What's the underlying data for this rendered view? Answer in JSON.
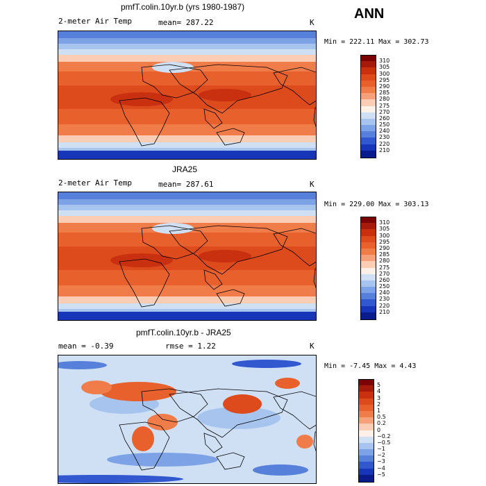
{
  "season": "ANN",
  "panels": [
    {
      "title": "pmfT.colin.10yr.b (yrs 1980-1987)",
      "left_label": "2-meter Air Temp",
      "center_label": "mean= 287.22",
      "unit": "K",
      "min_max": "Min = 222.11 Max = 302.73",
      "colorbar_labels": [
        "310",
        "305",
        "300",
        "295",
        "290",
        "285",
        "280",
        "275",
        "270",
        "260",
        "250",
        "240",
        "230",
        "220",
        "210"
      ],
      "colors": [
        "#7a0403",
        "#a51a0b",
        "#c8300f",
        "#dd4a1c",
        "#e8612d",
        "#f07c4a",
        "#f6a07a",
        "#fbcdb4",
        "#fdf0e6",
        "#cfe0f5",
        "#a6c4ee",
        "#7da3e6",
        "#5780db",
        "#3158cf",
        "#1735b8",
        "#0a1c8c"
      ],
      "surface": "temp"
    },
    {
      "title": "JRA25",
      "left_label": "2-meter Air Temp",
      "center_label": "mean= 287.61",
      "unit": "K",
      "min_max": "Min = 229.00 Max = 303.13",
      "colorbar_labels": [
        "310",
        "305",
        "300",
        "295",
        "290",
        "285",
        "280",
        "275",
        "270",
        "260",
        "250",
        "240",
        "230",
        "220",
        "210"
      ],
      "colors": [
        "#7a0403",
        "#a51a0b",
        "#c8300f",
        "#dd4a1c",
        "#e8612d",
        "#f07c4a",
        "#f6a07a",
        "#fbcdb4",
        "#fdf0e6",
        "#cfe0f5",
        "#a6c4ee",
        "#7da3e6",
        "#5780db",
        "#3158cf",
        "#1735b8",
        "#0a1c8c"
      ],
      "surface": "temp"
    },
    {
      "title": "pmfT.colin.10yr.b - JRA25",
      "left_label": "mean =   -0.39",
      "center_label": "rmse =   1.22",
      "unit": "K",
      "min_max": "Min =  -7.45 Max =   4.43",
      "colorbar_labels": [
        "5",
        "4",
        "3",
        "2",
        "1",
        "0.5",
        "0.2",
        "0",
        "−0.2",
        "−0.5",
        "−1",
        "−2",
        "−3",
        "−4",
        "−5"
      ],
      "colors": [
        "#7a0403",
        "#a51a0b",
        "#c8300f",
        "#dd4a1c",
        "#e8612d",
        "#f07c4a",
        "#f6a07a",
        "#fbcdb4",
        "#fdf0e6",
        "#cfe0f5",
        "#a6c4ee",
        "#7da3e6",
        "#5780db",
        "#3158cf",
        "#1735b8",
        "#0a1c8c"
      ],
      "surface": "diff"
    }
  ]
}
